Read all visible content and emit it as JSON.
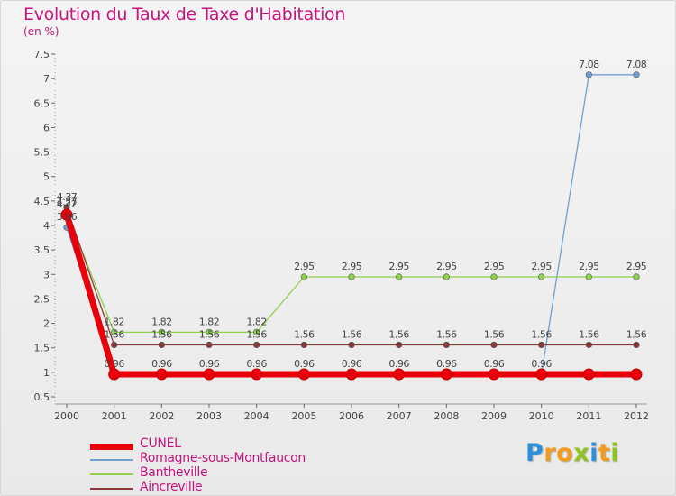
{
  "title": "Evolution du Taux de Taxe d'Habitation",
  "unit": "(en %)",
  "logo": {
    "text": "Proxiti",
    "letters": [
      {
        "ch": "P",
        "color": "#2b8fd9"
      },
      {
        "ch": "r",
        "color": "#f29a1b"
      },
      {
        "ch": "o",
        "color": "#f29a1b"
      },
      {
        "ch": "x",
        "color": "#8fc31f"
      },
      {
        "ch": "i",
        "color": "#2b8fd9"
      },
      {
        "ch": "t",
        "color": "#f29a1b"
      },
      {
        "ch": "i",
        "color": "#8fc31f"
      }
    ]
  },
  "chart_data": {
    "type": "line",
    "title": "Evolution du Taux de Taxe d'Habitation",
    "ylabel": "(en %)",
    "xlabel": "",
    "categories": [
      "2000",
      "2001",
      "2002",
      "2003",
      "2004",
      "2005",
      "2006",
      "2007",
      "2008",
      "2009",
      "2010",
      "2011",
      "2012"
    ],
    "ylim": [
      0.5,
      7.5
    ],
    "yticks": [
      "0.5",
      "1",
      "1.5",
      "2",
      "2.5",
      "3",
      "3.5",
      "4",
      "4.5",
      "5",
      "5.5",
      "6",
      "6.5",
      "7",
      "7.5"
    ],
    "grid": false,
    "legend_position": "bottom-left",
    "series": [
      {
        "name": "CUNEL",
        "color": "#e8000b",
        "style": "thick",
        "values": [
          4.22,
          0.96,
          0.96,
          0.96,
          0.96,
          0.96,
          0.96,
          0.96,
          0.96,
          0.96,
          0.96,
          0.96,
          0.96
        ],
        "labels": [
          "4.22",
          "",
          "",
          "",
          "",
          "",
          "",
          "",
          "",
          "",
          "",
          "",
          ""
        ]
      },
      {
        "name": "Romagne-sous-Montfaucon",
        "color": "#6f9fd0",
        "style": "normal",
        "values": [
          3.96,
          0.96,
          0.96,
          0.96,
          0.96,
          0.96,
          0.96,
          0.96,
          0.96,
          0.96,
          0.96,
          7.08,
          7.08
        ],
        "labels": [
          "3.96",
          "0.96",
          "0.96",
          "0.96",
          "0.96",
          "0.96",
          "0.96",
          "0.96",
          "0.96",
          "0.96",
          "0.96",
          "7.08",
          "7.08"
        ]
      },
      {
        "name": "Bantheville",
        "color": "#8fd14f",
        "style": "normal",
        "values": [
          4.27,
          1.82,
          1.82,
          1.82,
          1.82,
          2.95,
          2.95,
          2.95,
          2.95,
          2.95,
          2.95,
          2.95,
          2.95
        ],
        "labels": [
          "4.27",
          "1.82",
          "1.82",
          "1.82",
          "1.82",
          "2.95",
          "2.95",
          "2.95",
          "2.95",
          "2.95",
          "2.95",
          "2.95",
          "2.95"
        ]
      },
      {
        "name": "Aincreville",
        "color": "#8b3a3a",
        "style": "normal",
        "values": [
          4.37,
          1.56,
          1.56,
          1.56,
          1.56,
          1.56,
          1.56,
          1.56,
          1.56,
          1.56,
          1.56,
          1.56,
          1.56
        ],
        "labels": [
          "4.37",
          "1.56",
          "1.56",
          "1.56",
          "1.56",
          "1.56",
          "1.56",
          "1.56",
          "1.56",
          "1.56",
          "1.56",
          "1.56",
          "1.56"
        ]
      }
    ]
  }
}
